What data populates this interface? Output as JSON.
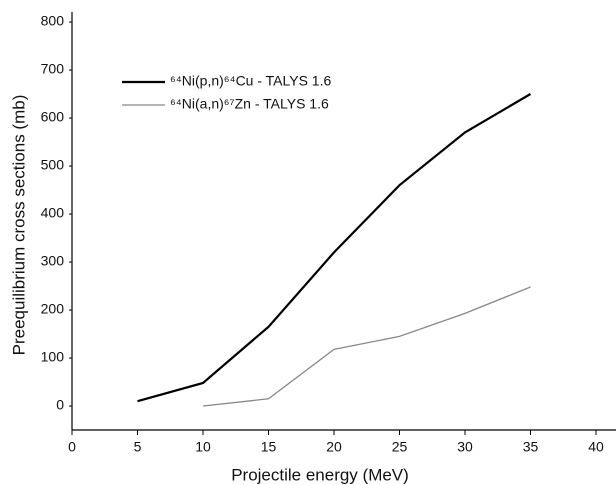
{
  "chart_data": {
    "type": "line",
    "x_label": "Projectile energy (MeV)",
    "y_label": "Preequilibrium cross sections (mb)",
    "x": [
      5,
      10,
      15,
      20,
      25,
      30,
      35
    ],
    "series": [
      {
        "name": "⁶⁴Ni(p,n)⁶⁴Cu - TALYS 1.6",
        "color": "#000000",
        "values": [
          10,
          48,
          165,
          320,
          460,
          570,
          650
        ]
      },
      {
        "name": "⁶⁴Ni(a,n)⁶⁷Zn - TALYS 1.6",
        "color": "#888888",
        "values": [
          null,
          0,
          15,
          118,
          145,
          193,
          248
        ]
      }
    ],
    "xlim": [
      0,
      40
    ],
    "xticks": [
      0,
      5,
      10,
      15,
      20,
      25,
      30,
      35,
      40
    ],
    "ylim": [
      -50,
      800
    ],
    "yticks": [
      0,
      100,
      200,
      300,
      400,
      500,
      600,
      700,
      800
    ],
    "grid": false,
    "legend": "upper left"
  }
}
